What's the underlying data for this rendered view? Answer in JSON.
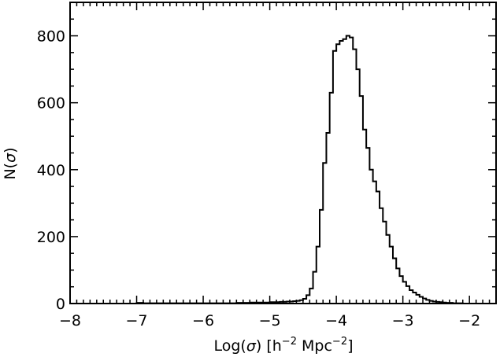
{
  "chart_data": {
    "type": "bar",
    "style": "step-histogram",
    "xlabel": {
      "prefix": "Log(",
      "sigma": "σ",
      "mid": ") [h",
      "exp1": "−2",
      "unit": " Mpc",
      "exp2": "−2",
      "suffix": "]"
    },
    "ylabel": {
      "prefix": "N(",
      "sigma": "σ",
      "suffix": ")"
    },
    "xlim": [
      -8,
      -1.6
    ],
    "ylim": [
      0,
      900
    ],
    "xticks": [
      -8,
      -7,
      -6,
      -5,
      -4,
      -3,
      -2
    ],
    "xtick_labels": [
      "−8",
      "−7",
      "−6",
      "−5",
      "−4",
      "−3",
      "−2"
    ],
    "yticks": [
      0,
      200,
      400,
      600,
      800
    ],
    "ytick_labels": [
      "0",
      "200",
      "400",
      "600",
      "800"
    ],
    "bin_width": 0.05,
    "bin_start": -7.0,
    "counts": [
      2,
      2,
      1,
      1,
      1,
      1,
      1,
      1,
      1,
      1,
      1,
      1,
      1,
      1,
      1,
      1,
      1,
      1,
      1,
      1,
      1,
      1,
      1,
      1,
      1,
      1,
      1,
      1,
      1,
      1,
      2,
      2,
      2,
      2,
      3,
      3,
      3,
      3,
      3,
      3,
      4,
      4,
      4,
      5,
      5,
      6,
      6,
      7,
      8,
      10,
      14,
      25,
      45,
      95,
      170,
      280,
      420,
      510,
      630,
      755,
      775,
      785,
      790,
      800,
      795,
      760,
      700,
      620,
      520,
      465,
      400,
      365,
      335,
      285,
      245,
      205,
      170,
      135,
      105,
      82,
      65,
      52,
      40,
      33,
      26,
      20,
      15,
      11,
      8,
      6,
      5,
      4,
      3,
      2,
      2,
      1,
      1,
      1
    ],
    "color": "#000000",
    "grid": false,
    "legend": "none"
  }
}
